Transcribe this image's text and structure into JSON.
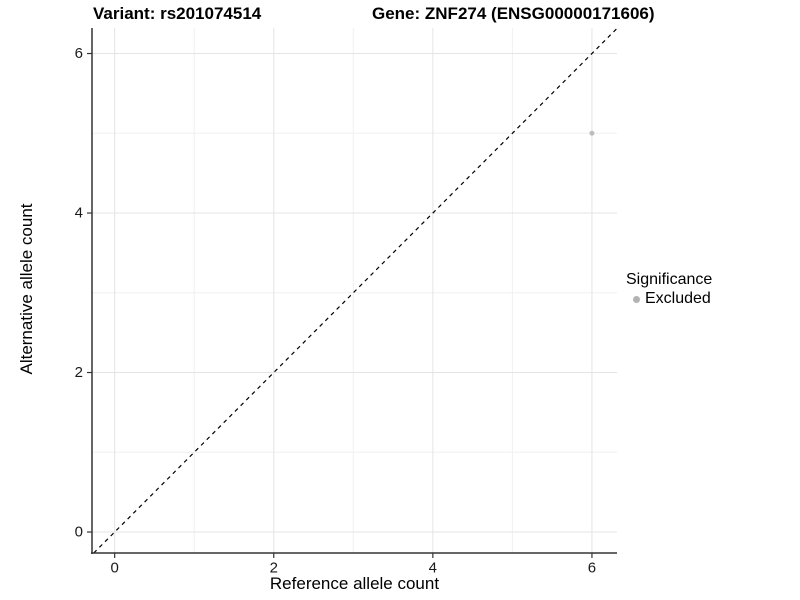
{
  "titles": {
    "left": "Variant: rs201074514",
    "right": "Gene: ZNF274 (ENSG00000171606)"
  },
  "chart_data": {
    "type": "scatter",
    "title": "Variant: rs201074514 — Gene: ZNF274 (ENSG00000171606)",
    "xlabel": "Reference allele count",
    "ylabel": "Alternative allele count",
    "xlim": [
      -0.285,
      6.315
    ],
    "ylim": [
      -0.263,
      6.32
    ],
    "x_major_ticks": [
      0,
      2,
      4,
      6
    ],
    "y_major_ticks": [
      0,
      2,
      4,
      6
    ],
    "x_minor_ticks": [
      1,
      3,
      5
    ],
    "y_minor_ticks": [
      1,
      3,
      5
    ],
    "grid": true,
    "reference_line": {
      "slope": 1,
      "intercept": 0,
      "style": "dashed"
    },
    "series": [
      {
        "name": "Excluded",
        "points": [
          {
            "x": 6,
            "y": 5
          }
        ],
        "color": "#bdbdbd"
      }
    ],
    "legend": {
      "title": "Significance",
      "position": "right",
      "items": [
        {
          "label": "Excluded",
          "color": "#b3b3b3"
        }
      ]
    }
  },
  "colors": {
    "background": "#ffffff",
    "grid_major": "#e4e4e4",
    "grid_minor": "#f0f0f0",
    "axis_line": "#333333",
    "tick_mark": "#333333",
    "reference_line": "#000000",
    "point": "#bdbdbd",
    "text": "#000000"
  }
}
